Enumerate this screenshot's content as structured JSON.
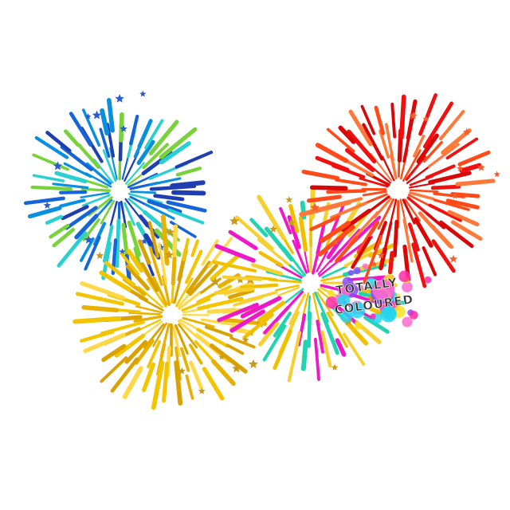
{
  "fireworks": [
    {
      "name": "blue-firework",
      "colors": [
        "#1565d8",
        "#0a8fe0",
        "#2ad0d0",
        "#7ad23a",
        "#1f3fb0"
      ],
      "star_color": "#2a5bd0"
    },
    {
      "name": "yellow-firework",
      "colors": [
        "#f2c500",
        "#e8b000",
        "#ffd84a",
        "#d9a200"
      ],
      "star_color": "#c99a1a"
    },
    {
      "name": "center-firework",
      "colors": [
        "#f0c000",
        "#ee18c8",
        "#22d3b0",
        "#f5d030"
      ],
      "star_color": "#c99a1a"
    },
    {
      "name": "red-firework",
      "colors": [
        "#f01010",
        "#ff4a1a",
        "#ff7a3a",
        "#d80808"
      ],
      "star_color": "#f06030"
    }
  ],
  "watermark": {
    "line1": "TOTALLY",
    "line2": "COLOURED",
    "splash_colors": [
      "#ff2aa8",
      "#8a4bff",
      "#22d6f0",
      "#ffe020",
      "#ff6ad0"
    ]
  }
}
